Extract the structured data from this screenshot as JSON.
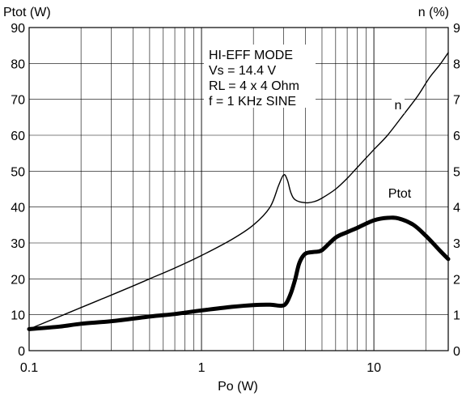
{
  "chart_data": {
    "type": "line",
    "xscale": "log",
    "xlabel": "Po (W)",
    "xlim": [
      0.1,
      27
    ],
    "x_ticks": [
      {
        "value": 0.1,
        "label": "0.1"
      },
      {
        "value": 1,
        "label": "1"
      },
      {
        "value": 10,
        "label": "10"
      }
    ],
    "y_left": {
      "label": "Ptot (W)",
      "ylim": [
        0,
        90
      ],
      "ticks": [
        0,
        10,
        20,
        30,
        40,
        50,
        60,
        70,
        80,
        90
      ]
    },
    "y_right": {
      "label": "n (%)",
      "ylim": [
        0,
        9
      ],
      "ticks": [
        0,
        1,
        2,
        3,
        4,
        5,
        6,
        7,
        8,
        9
      ]
    },
    "grid": true,
    "annotation": [
      "HI-EFF MODE",
      "Vs = 14.4 V",
      "RL = 4 x 4 Ohm",
      "f = 1 KHz SINE"
    ],
    "series": [
      {
        "name": "n",
        "axis": "right",
        "color": "#000000",
        "width": "thin",
        "points": [
          [
            0.1,
            0.6
          ],
          [
            0.15,
            0.95
          ],
          [
            0.2,
            1.2
          ],
          [
            0.3,
            1.55
          ],
          [
            0.4,
            1.8
          ],
          [
            0.5,
            2.0
          ],
          [
            0.7,
            2.3
          ],
          [
            1.0,
            2.65
          ],
          [
            1.5,
            3.1
          ],
          [
            2.0,
            3.5
          ],
          [
            2.5,
            4.0
          ],
          [
            2.8,
            4.6
          ],
          [
            3.0,
            4.9
          ],
          [
            3.15,
            4.75
          ],
          [
            3.3,
            4.4
          ],
          [
            3.5,
            4.2
          ],
          [
            4.0,
            4.12
          ],
          [
            4.5,
            4.15
          ],
          [
            5.0,
            4.25
          ],
          [
            6.0,
            4.5
          ],
          [
            7.0,
            4.8
          ],
          [
            8.0,
            5.1
          ],
          [
            10.0,
            5.6
          ],
          [
            12.0,
            6.0
          ],
          [
            15.0,
            6.6
          ],
          [
            18.0,
            7.1
          ],
          [
            21.0,
            7.6
          ],
          [
            24.0,
            7.95
          ],
          [
            27.0,
            8.3
          ]
        ]
      },
      {
        "name": "Ptot",
        "axis": "left",
        "color": "#000000",
        "width": "thick",
        "points": [
          [
            0.1,
            6.0
          ],
          [
            0.15,
            6.7
          ],
          [
            0.2,
            7.5
          ],
          [
            0.3,
            8.2
          ],
          [
            0.5,
            9.5
          ],
          [
            0.7,
            10.2
          ],
          [
            1.0,
            11.2
          ],
          [
            1.5,
            12.2
          ],
          [
            2.0,
            12.7
          ],
          [
            2.5,
            12.8
          ],
          [
            2.9,
            12.5
          ],
          [
            3.1,
            13.2
          ],
          [
            3.3,
            16.0
          ],
          [
            3.5,
            20.0
          ],
          [
            3.7,
            24.5
          ],
          [
            4.0,
            27.0
          ],
          [
            4.5,
            27.5
          ],
          [
            5.0,
            28.0
          ],
          [
            6.0,
            31.5
          ],
          [
            7.0,
            33.0
          ],
          [
            8.0,
            34.2
          ],
          [
            10.0,
            36.3
          ],
          [
            12.0,
            37.0
          ],
          [
            14.0,
            36.8
          ],
          [
            17.0,
            35.0
          ],
          [
            20.0,
            32.0
          ],
          [
            24.0,
            28.0
          ],
          [
            27.0,
            25.5
          ]
        ]
      }
    ]
  }
}
